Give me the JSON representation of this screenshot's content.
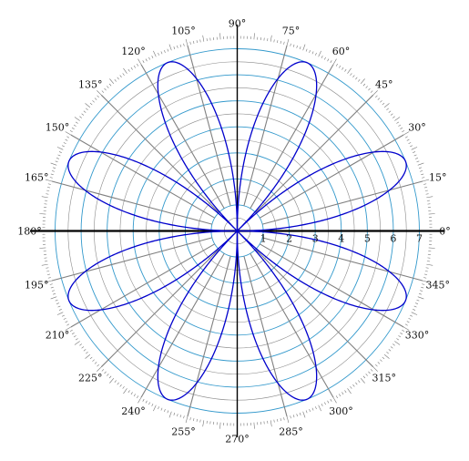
{
  "chart_data": {
    "type": "line",
    "coordinate_system": "polar",
    "curve": "rose r = 7·|sin(4θ)| (8 petals)",
    "radial_max": 7,
    "radial_ticks": [
      1,
      2,
      3,
      4,
      5,
      6,
      7
    ],
    "radial_tick_labels": [
      "1",
      "2",
      "3",
      "4",
      "5",
      "6",
      "7"
    ],
    "radial_circles": [
      0.5,
      1,
      1.5,
      2,
      2.5,
      3,
      3.5,
      4,
      4.5,
      5,
      5.5,
      6,
      6.5,
      7
    ],
    "angle_ticks": [
      0,
      15,
      30,
      45,
      60,
      75,
      90,
      105,
      120,
      135,
      150,
      165,
      180,
      195,
      210,
      225,
      240,
      255,
      270,
      285,
      300,
      315,
      330,
      345
    ],
    "angle_labels": [
      "0°",
      "15°",
      "30°",
      "45°",
      "60°",
      "75°",
      "90°",
      "105°",
      "120°",
      "135°",
      "150°",
      "165°",
      "180°",
      "195°",
      "210°",
      "225°",
      "240°",
      "255°",
      "270°",
      "285°",
      "300°",
      "315°",
      "330°",
      "345°"
    ],
    "series": [
      {
        "amplitude": 7,
        "petals": 8,
        "color": "#0000cc"
      }
    ],
    "colors": {
      "grid_circle": "#3399cc",
      "grid_spoke": "#808080",
      "axes": "#000000",
      "curve": "#0000cc"
    }
  }
}
